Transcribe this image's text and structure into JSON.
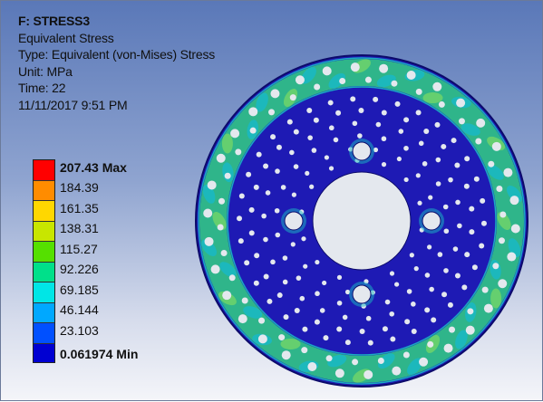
{
  "result": {
    "title": "F: STRESS3",
    "name": "Equivalent Stress",
    "type": "Type: Equivalent (von-Mises) Stress",
    "unit": "Unit: MPa",
    "time": "Time: 22",
    "timestamp": "11/11/2017 9:51 PM"
  },
  "legend": {
    "max_label": "207.43 Max",
    "min_label": "0.061974 Min",
    "levels": [
      "184.39",
      "161.35",
      "138.31",
      "115.27",
      "92.226",
      "69.185",
      "46.144",
      "23.103"
    ],
    "colors": [
      "#ff0000",
      "#ff8c00",
      "#ffd700",
      "#c8e600",
      "#55e000",
      "#00e08a",
      "#00e6e6",
      "#00a8ff",
      "#0050ff",
      "#0000d2"
    ]
  },
  "model": {
    "description_icon": "brake-disc-mesh",
    "colors": {
      "disc": "#1e1ab4",
      "ring_green": "#2fb58a",
      "ring_lime": "#6ed46a",
      "ring_cyan": "#19b9c4",
      "hole": "#e4e8ee",
      "outline": "#0c0a6a"
    }
  }
}
